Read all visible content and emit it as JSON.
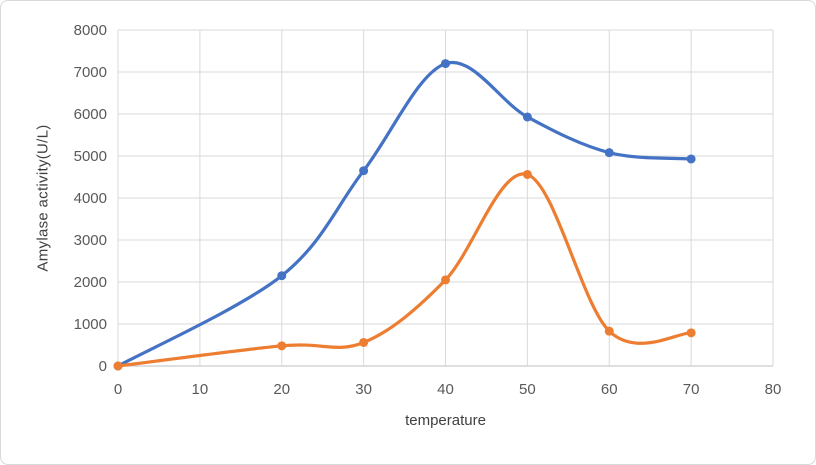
{
  "chart_data": {
    "type": "line",
    "title": "",
    "xlabel": "temperature",
    "ylabel": "Amylase activity(U/L)",
    "x": [
      0,
      20,
      30,
      40,
      50,
      60,
      70
    ],
    "series": [
      {
        "name": "blue-series",
        "color": "#4472C4",
        "values": [
          0,
          2150,
          4650,
          7200,
          5930,
          5080,
          4930
        ]
      },
      {
        "name": "orange-series",
        "color": "#ED7D31",
        "values": [
          0,
          480,
          560,
          2050,
          4560,
          830,
          790
        ]
      }
    ],
    "xlim": [
      0,
      80
    ],
    "ylim": [
      0,
      8000
    ],
    "x_ticks": [
      0,
      10,
      20,
      30,
      40,
      50,
      60,
      70,
      80
    ],
    "y_ticks": [
      0,
      1000,
      2000,
      3000,
      4000,
      5000,
      6000,
      7000,
      8000
    ],
    "grid": true,
    "legend": "none",
    "smooth": true,
    "marker": "circle"
  },
  "styles": {
    "background": "#FFFFFF",
    "frame_border_color": "#D9D9D9",
    "grid_color": "#D9D9D9",
    "axis_line_color": "#BFBFBF",
    "tick_label_color": "#595959",
    "axis_title_color": "#404040"
  }
}
